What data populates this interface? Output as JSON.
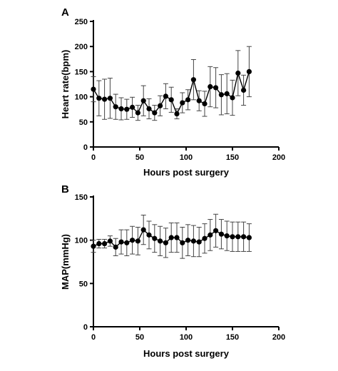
{
  "chart_data": [
    {
      "type": "line",
      "panel_label": "A",
      "xlabel": "Hours post surgery",
      "ylabel": "Heart rate(bpm)",
      "xlim": [
        0,
        200
      ],
      "ylim": [
        0,
        250
      ],
      "xticks": [
        "0",
        "50",
        "100",
        "150",
        "200"
      ],
      "yticks": [
        "0",
        "50",
        "100",
        "150",
        "200",
        "250"
      ],
      "grid": false,
      "error_bars": true,
      "series": [
        {
          "x": [
            0,
            6,
            12,
            18,
            24,
            30,
            36,
            42,
            48,
            54,
            60,
            66,
            72,
            78,
            84,
            90,
            96,
            102,
            108,
            114,
            120,
            126,
            132,
            138,
            144,
            150,
            156,
            162,
            168
          ],
          "y": [
            115,
            97,
            95,
            97,
            80,
            76,
            75,
            79,
            68,
            92,
            76,
            68,
            82,
            101,
            94,
            66,
            88,
            94,
            134,
            92,
            86,
            120,
            118,
            104,
            106,
            98,
            147,
            113,
            150
          ],
          "err": [
            25,
            35,
            40,
            40,
            25,
            22,
            20,
            20,
            15,
            30,
            20,
            15,
            20,
            25,
            25,
            10,
            20,
            20,
            40,
            20,
            25,
            40,
            40,
            40,
            40,
            35,
            45,
            30,
            50
          ]
        }
      ]
    },
    {
      "type": "line",
      "panel_label": "B",
      "xlabel": "Hours post surgery",
      "ylabel": "MAP(mmHg)",
      "xlim": [
        0,
        200
      ],
      "ylim": [
        0,
        150
      ],
      "xticks": [
        "0",
        "50",
        "100",
        "150",
        "200"
      ],
      "yticks": [
        "0",
        "50",
        "100",
        "150"
      ],
      "grid": false,
      "error_bars": true,
      "series": [
        {
          "x": [
            0,
            6,
            12,
            18,
            24,
            30,
            36,
            42,
            48,
            54,
            60,
            66,
            72,
            78,
            84,
            90,
            96,
            102,
            108,
            114,
            120,
            126,
            132,
            138,
            144,
            150,
            156,
            162,
            168
          ],
          "y": [
            93,
            96,
            96,
            99,
            92,
            98,
            97,
            100,
            99,
            112,
            106,
            102,
            99,
            97,
            103,
            103,
            97,
            100,
            99,
            98,
            102,
            106,
            111,
            107,
            105,
            104,
            104,
            104,
            103
          ],
          "err": [
            7,
            5,
            5,
            6,
            10,
            14,
            15,
            16,
            16,
            17,
            16,
            16,
            17,
            17,
            17,
            17,
            18,
            18,
            18,
            17,
            17,
            18,
            19,
            17,
            17,
            17,
            17,
            17,
            16
          ]
        }
      ]
    }
  ]
}
